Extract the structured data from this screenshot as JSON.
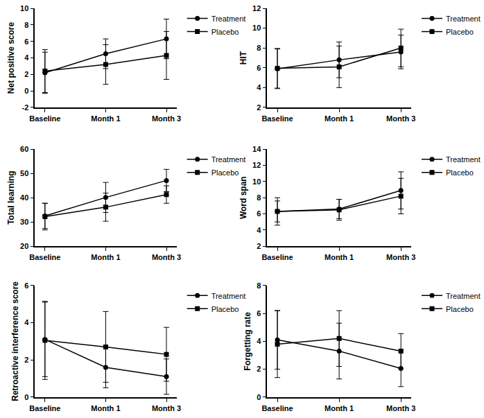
{
  "chart_data": [
    {
      "type": "line",
      "y_label": "Net positive score",
      "categories": [
        "Baseline",
        "Month 1",
        "Month 3"
      ],
      "ylim": [
        -2,
        10
      ],
      "yticks": [
        -2,
        0,
        2,
        4,
        6,
        8,
        10
      ],
      "grid": false,
      "legend": "right",
      "series": [
        {
          "name": "Treatment",
          "color": "#000000",
          "marker": "circle",
          "values": [
            2.2,
            4.5,
            6.3
          ],
          "error": [
            2.5,
            1.8,
            2.4
          ]
        },
        {
          "name": "Placebo",
          "color": "#000000",
          "marker": "square",
          "values": [
            2.4,
            3.2,
            4.3
          ],
          "error": [
            2.6,
            2.4,
            2.9
          ]
        }
      ]
    },
    {
      "type": "line",
      "y_label": "HIT",
      "categories": [
        "Baseline",
        "Month 1",
        "Month 3"
      ],
      "ylim": [
        2,
        12
      ],
      "yticks": [
        2,
        4,
        6,
        8,
        10,
        12
      ],
      "grid": false,
      "legend": "right",
      "series": [
        {
          "name": "Treatment",
          "color": "#000000",
          "marker": "circle",
          "values": [
            5.9,
            6.8,
            7.6
          ],
          "error": [
            2.0,
            1.8,
            1.7
          ]
        },
        {
          "name": "Placebo",
          "color": "#000000",
          "marker": "square",
          "values": [
            5.95,
            6.1,
            8.0
          ],
          "error": [
            2.0,
            2.1,
            1.9
          ]
        }
      ]
    },
    {
      "type": "line",
      "y_label": "Total learning",
      "categories": [
        "Baseline",
        "Month 1",
        "Month 3"
      ],
      "ylim": [
        20,
        60
      ],
      "yticks": [
        20,
        30,
        40,
        50,
        60
      ],
      "grid": false,
      "legend": "right",
      "series": [
        {
          "name": "Treatment",
          "color": "#000000",
          "marker": "circle",
          "values": [
            32.5,
            40.1,
            47.1
          ],
          "error": [
            5.2,
            6.2,
            4.6
          ]
        },
        {
          "name": "Placebo",
          "color": "#000000",
          "marker": "square",
          "values": [
            32.2,
            36.1,
            41.3
          ],
          "error": [
            5.5,
            5.8,
            3.6
          ]
        }
      ]
    },
    {
      "type": "line",
      "y_label": "Word span",
      "categories": [
        "Baseline",
        "Month 1",
        "Month 3"
      ],
      "ylim": [
        2,
        14
      ],
      "yticks": [
        2,
        4,
        6,
        8,
        10,
        12,
        14
      ],
      "grid": false,
      "legend": "right",
      "series": [
        {
          "name": "Treatment",
          "color": "#000000",
          "marker": "circle",
          "values": [
            6.3,
            6.6,
            8.9
          ],
          "error": [
            1.7,
            1.2,
            2.3
          ]
        },
        {
          "name": "Placebo",
          "color": "#000000",
          "marker": "square",
          "values": [
            6.3,
            6.5,
            8.2
          ],
          "error": [
            1.3,
            1.3,
            2.2
          ]
        }
      ]
    },
    {
      "type": "line",
      "y_label": "Retroactive interference score",
      "categories": [
        "Baseline",
        "Month 1",
        "Month 3"
      ],
      "ylim": [
        0,
        6
      ],
      "yticks": [
        0,
        2,
        4,
        6
      ],
      "grid": false,
      "legend": "right",
      "series": [
        {
          "name": "Treatment",
          "color": "#000000",
          "marker": "circle",
          "values": [
            3.1,
            1.6,
            1.1
          ],
          "error": [
            2.0,
            1.1,
            0.95
          ]
        },
        {
          "name": "Placebo",
          "color": "#000000",
          "marker": "square",
          "values": [
            3.05,
            2.7,
            2.3
          ],
          "error": [
            2.1,
            1.9,
            1.45
          ]
        }
      ]
    },
    {
      "type": "line",
      "y_label": "Forgetting rate",
      "categories": [
        "Baseline",
        "Month 1",
        "Month 3"
      ],
      "ylim": [
        0,
        8
      ],
      "yticks": [
        0,
        2,
        4,
        6,
        8
      ],
      "grid": false,
      "legend": "right",
      "series": [
        {
          "name": "Treatment",
          "color": "#000000",
          "marker": "circle",
          "values": [
            4.1,
            3.3,
            2.05
          ],
          "error": [
            2.1,
            2.0,
            1.3
          ]
        },
        {
          "name": "Placebo",
          "color": "#000000",
          "marker": "square",
          "values": [
            3.8,
            4.2,
            3.3
          ],
          "error": [
            2.4,
            2.0,
            1.25
          ]
        }
      ]
    }
  ]
}
